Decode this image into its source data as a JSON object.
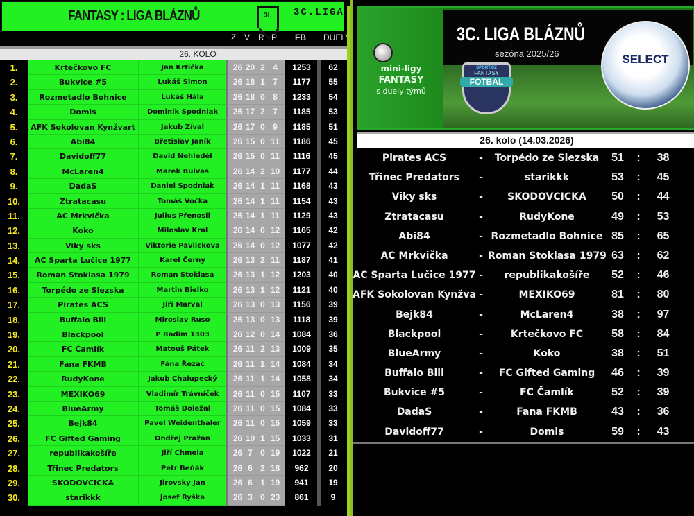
{
  "standings": {
    "title": "FANTASY : LIGA BLÁZNŮ",
    "badge": "3L",
    "league": "3C.LIGA",
    "columns": [
      "Z",
      "V",
      "R",
      "P",
      "FB",
      "DUELY"
    ],
    "round": "26. KOLO",
    "rows": [
      {
        "rank": "1.",
        "team": "Krtečkovo FC",
        "manager": "Jan Krtička",
        "z": "26",
        "v": "20",
        "r": "2",
        "p": "4",
        "fb": "1253",
        "duely": "62"
      },
      {
        "rank": "2.",
        "team": "Bukvice #5",
        "manager": "Lukáš Simon",
        "z": "26",
        "v": "18",
        "r": "1",
        "p": "7",
        "fb": "1177",
        "duely": "55"
      },
      {
        "rank": "3.",
        "team": "Rozmetadlo Bohnice",
        "manager": "Lukáš Hála",
        "z": "26",
        "v": "18",
        "r": "0",
        "p": "8",
        "fb": "1233",
        "duely": "54"
      },
      {
        "rank": "4.",
        "team": "Domis",
        "manager": "Dominik Spodniak",
        "z": "26",
        "v": "17",
        "r": "2",
        "p": "7",
        "fb": "1185",
        "duely": "53"
      },
      {
        "rank": "5.",
        "team": "AFK Sokolovan Kynžvart",
        "manager": "Jakub Zíval",
        "z": "26",
        "v": "17",
        "r": "0",
        "p": "9",
        "fb": "1185",
        "duely": "51"
      },
      {
        "rank": "6.",
        "team": "Abi84",
        "manager": "Břetislav Janík",
        "z": "26",
        "v": "15",
        "r": "0",
        "p": "11",
        "fb": "1186",
        "duely": "45"
      },
      {
        "rank": "7.",
        "team": "Davidoff77",
        "manager": "David Nehleděl",
        "z": "26",
        "v": "15",
        "r": "0",
        "p": "11",
        "fb": "1116",
        "duely": "45"
      },
      {
        "rank": "8.",
        "team": "McLaren4",
        "manager": "Marek Bulvas",
        "z": "26",
        "v": "14",
        "r": "2",
        "p": "10",
        "fb": "1177",
        "duely": "44"
      },
      {
        "rank": "9.",
        "team": "DadaS",
        "manager": "Daniel Spodniak",
        "z": "26",
        "v": "14",
        "r": "1",
        "p": "11",
        "fb": "1168",
        "duely": "43"
      },
      {
        "rank": "10.",
        "team": "Ztratacasu",
        "manager": "Tomáš Vočka",
        "z": "26",
        "v": "14",
        "r": "1",
        "p": "11",
        "fb": "1154",
        "duely": "43"
      },
      {
        "rank": "11.",
        "team": "AC Mrkvička",
        "manager": "Julius Přenosil",
        "z": "26",
        "v": "14",
        "r": "1",
        "p": "11",
        "fb": "1129",
        "duely": "43"
      },
      {
        "rank": "12.",
        "team": "Koko",
        "manager": "Miloslav Král",
        "z": "26",
        "v": "14",
        "r": "0",
        "p": "12",
        "fb": "1165",
        "duely": "42"
      },
      {
        "rank": "13.",
        "team": "Viky sks",
        "manager": "Viktorie Pavlickova",
        "z": "26",
        "v": "14",
        "r": "0",
        "p": "12",
        "fb": "1077",
        "duely": "42"
      },
      {
        "rank": "14.",
        "team": "AC Sparta Lučice 1977",
        "manager": "Karel Černý",
        "z": "26",
        "v": "13",
        "r": "2",
        "p": "11",
        "fb": "1187",
        "duely": "41"
      },
      {
        "rank": "15.",
        "team": "Roman Stoklasa 1979",
        "manager": "Roman Stoklasa",
        "z": "26",
        "v": "13",
        "r": "1",
        "p": "12",
        "fb": "1203",
        "duely": "40"
      },
      {
        "rank": "16.",
        "team": "Torpédo ze Slezska",
        "manager": "Martin Bielko",
        "z": "26",
        "v": "13",
        "r": "1",
        "p": "12",
        "fb": "1121",
        "duely": "40"
      },
      {
        "rank": "17.",
        "team": "Pirates ACS",
        "manager": "Jiří Marval",
        "z": "26",
        "v": "13",
        "r": "0",
        "p": "13",
        "fb": "1156",
        "duely": "39"
      },
      {
        "rank": "18.",
        "team": "Buffalo Bill",
        "manager": "Miroslav Ruso",
        "z": "26",
        "v": "13",
        "r": "0",
        "p": "13",
        "fb": "1118",
        "duely": "39"
      },
      {
        "rank": "19.",
        "team": "Blackpool",
        "manager": "P Radim 1303",
        "z": "26",
        "v": "12",
        "r": "0",
        "p": "14",
        "fb": "1084",
        "duely": "36"
      },
      {
        "rank": "20.",
        "team": "FC Čamlík",
        "manager": "Matouš Pátek",
        "z": "26",
        "v": "11",
        "r": "2",
        "p": "13",
        "fb": "1009",
        "duely": "35"
      },
      {
        "rank": "21.",
        "team": "Fana FKMB",
        "manager": "Fána Řezáč",
        "z": "26",
        "v": "11",
        "r": "1",
        "p": "14",
        "fb": "1084",
        "duely": "34"
      },
      {
        "rank": "22.",
        "team": "RudyKone",
        "manager": "Jakub Chalupecký",
        "z": "26",
        "v": "11",
        "r": "1",
        "p": "14",
        "fb": "1058",
        "duely": "34"
      },
      {
        "rank": "23.",
        "team": "MEXIKO69",
        "manager": "Vladimír Trávníček",
        "z": "26",
        "v": "11",
        "r": "0",
        "p": "15",
        "fb": "1107",
        "duely": "33"
      },
      {
        "rank": "24.",
        "team": "BlueArmy",
        "manager": "Tomáš Doležal",
        "z": "26",
        "v": "11",
        "r": "0",
        "p": "15",
        "fb": "1084",
        "duely": "33"
      },
      {
        "rank": "25.",
        "team": "Bejk84",
        "manager": "Pavel Weidenthaler",
        "z": "26",
        "v": "11",
        "r": "0",
        "p": "15",
        "fb": "1059",
        "duely": "33"
      },
      {
        "rank": "26.",
        "team": "FC Gifted Gaming",
        "manager": "Ondřej Pražan",
        "z": "26",
        "v": "10",
        "r": "1",
        "p": "15",
        "fb": "1033",
        "duely": "31"
      },
      {
        "rank": "27.",
        "team": "republikakošíře",
        "manager": "Jiří Chmela",
        "z": "26",
        "v": "7",
        "r": "0",
        "p": "19",
        "fb": "1022",
        "duely": "21"
      },
      {
        "rank": "28.",
        "team": "Třinec Predators",
        "manager": "Petr Beňák",
        "z": "26",
        "v": "6",
        "r": "2",
        "p": "18",
        "fb": "962",
        "duely": "20"
      },
      {
        "rank": "29.",
        "team": "SKODOVCICKA",
        "manager": "Jirovsky Jan",
        "z": "26",
        "v": "6",
        "r": "1",
        "p": "19",
        "fb": "941",
        "duely": "19"
      },
      {
        "rank": "30.",
        "team": "starikkk",
        "manager": "Josef Ryška",
        "z": "26",
        "v": "3",
        "r": "0",
        "p": "23",
        "fb": "861",
        "duely": "9"
      }
    ]
  },
  "banner": {
    "left_line1": "mini-ligy",
    "left_line2": "FANTASY",
    "left_line3": "s duely týmů",
    "title": "3C. LIGA BLÁZNŮ",
    "season": "sezóna 2025/26",
    "shield_top": "SPORT.CZ",
    "shield_mid": "FANTASY",
    "shield_main": "FOTBAL",
    "ball_brand": "SELECT"
  },
  "results": {
    "round": "26. kolo (14.03.2026)",
    "dash": "-",
    "colon": ":",
    "matches": [
      {
        "home": "Pirates ACS",
        "away": "Torpédo ze Slezska",
        "hs": "51",
        "as": "38"
      },
      {
        "home": "Třinec Predators",
        "away": "starikkk",
        "hs": "53",
        "as": "45"
      },
      {
        "home": "Viky sks",
        "away": "SKODOVCICKA",
        "hs": "50",
        "as": "44"
      },
      {
        "home": "Ztratacasu",
        "away": "RudyKone",
        "hs": "49",
        "as": "53"
      },
      {
        "home": "Abi84",
        "away": "Rozmetadlo Bohnice",
        "hs": "85",
        "as": "65"
      },
      {
        "home": "AC Mrkvička",
        "away": "Roman Stoklasa 1979",
        "hs": "63",
        "as": "62"
      },
      {
        "home": "AC Sparta Lučice 1977",
        "away": "republikakošíře",
        "hs": "52",
        "as": "46"
      },
      {
        "home": "AFK Sokolovan Kynžvart",
        "away": "MEXIKO69",
        "hs": "81",
        "as": "80"
      },
      {
        "home": "Bejk84",
        "away": "McLaren4",
        "hs": "38",
        "as": "97"
      },
      {
        "home": "Blackpool",
        "away": "Krtečkovo FC",
        "hs": "58",
        "as": "84"
      },
      {
        "home": "BlueArmy",
        "away": "Koko",
        "hs": "38",
        "as": "51"
      },
      {
        "home": "Buffalo Bill",
        "away": "FC Gifted Gaming",
        "hs": "46",
        "as": "39"
      },
      {
        "home": "Bukvice #5",
        "away": "FC Čamlík",
        "hs": "52",
        "as": "39"
      },
      {
        "home": "DadaS",
        "away": "Fana FKMB",
        "hs": "43",
        "as": "36"
      },
      {
        "home": "Davidoff77",
        "away": "Domis",
        "hs": "59",
        "as": "43"
      }
    ]
  },
  "colors": {
    "green": "#22f022",
    "rank_yellow": "#f2e820",
    "stats_gray": "#a7a7a7",
    "background": "#000000"
  }
}
